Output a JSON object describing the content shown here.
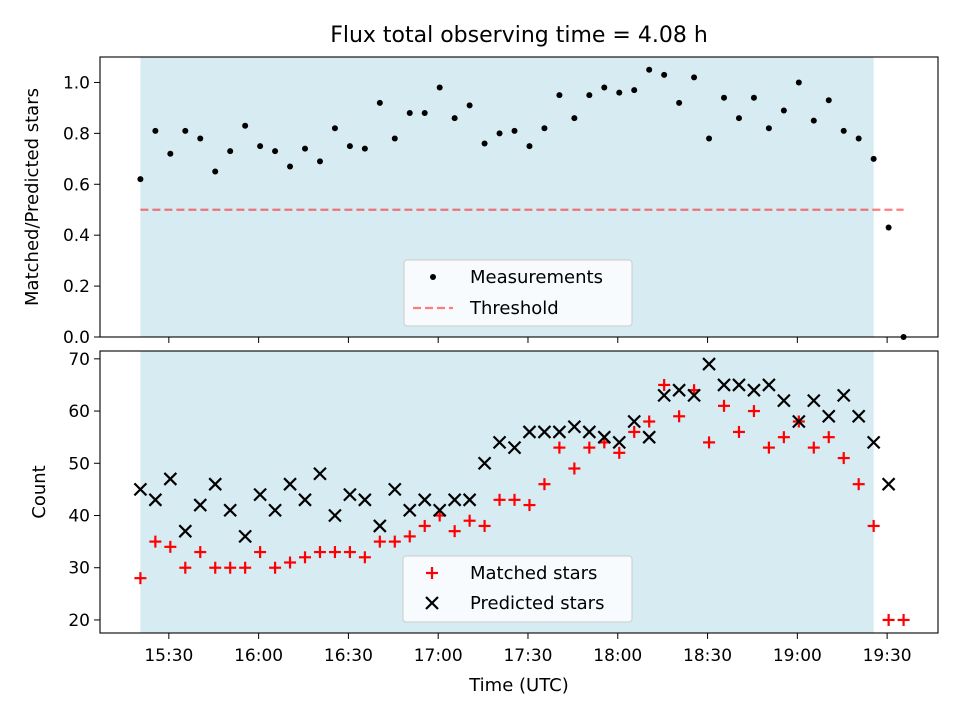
{
  "chart_data": [
    {
      "type": "scatter",
      "title": "Flux total observing time = 4.08 h",
      "xlabel": "",
      "ylabel": "Matched/Predicted stars",
      "ylim": [
        0,
        1.1
      ],
      "yticks": [
        "0.0",
        "0.2",
        "0.4",
        "0.6",
        "0.8",
        "1.0"
      ],
      "ytick_values": [
        0,
        0.2,
        0.4,
        0.6,
        0.8,
        1.0
      ],
      "observing_window_minutes": [
        920.5,
        1165.5
      ],
      "observing_window_color": "#add8e6",
      "legend": [
        "Measurements",
        "Threshold"
      ],
      "legend_location": "lower center",
      "threshold": {
        "value": 0.5,
        "x_range_minutes": [
          920.5,
          1175.5
        ],
        "color": "#ff0000"
      },
      "series": [
        {
          "name": "Measurements",
          "marker": "dot",
          "color": "#000000",
          "x_minutes": [
            920.5,
            925.5,
            930.5,
            935.5,
            940.5,
            945.5,
            950.5,
            955.5,
            960.5,
            965.5,
            970.5,
            975.5,
            980.5,
            985.5,
            990.5,
            995.5,
            1000.5,
            1005.5,
            1010.5,
            1015.5,
            1020.5,
            1025.5,
            1030.5,
            1035.5,
            1040.5,
            1045.5,
            1050.5,
            1055.5,
            1060.5,
            1065.5,
            1070.5,
            1075.5,
            1080.5,
            1085.5,
            1090.5,
            1095.5,
            1100.5,
            1105.5,
            1110.5,
            1115.5,
            1120.5,
            1125.5,
            1130.5,
            1135.5,
            1140.5,
            1145.5,
            1150.5,
            1155.5,
            1160.5,
            1165.5,
            1170.5,
            1175.5
          ],
          "y": [
            0.62,
            0.81,
            0.72,
            0.81,
            0.78,
            0.65,
            0.73,
            0.83,
            0.75,
            0.73,
            0.67,
            0.74,
            0.69,
            0.82,
            0.75,
            0.74,
            0.92,
            0.78,
            0.88,
            0.88,
            0.98,
            0.86,
            0.91,
            0.76,
            0.8,
            0.81,
            0.75,
            0.82,
            0.95,
            0.86,
            0.95,
            0.98,
            0.96,
            0.97,
            1.05,
            1.03,
            0.92,
            1.02,
            0.78,
            0.94,
            0.86,
            0.94,
            0.82,
            0.89,
            1.0,
            0.85,
            0.93,
            0.81,
            0.78,
            0.7,
            0.43,
            0.0
          ]
        }
      ]
    },
    {
      "type": "scatter",
      "title": "",
      "xlabel": "Time (UTC)",
      "ylabel": "Count",
      "ylim": [
        17.5,
        71.5
      ],
      "yticks": [
        "20",
        "30",
        "40",
        "50",
        "60",
        "70"
      ],
      "ytick_values": [
        20,
        30,
        40,
        50,
        60,
        70
      ],
      "xlim_minutes": [
        907,
        1187
      ],
      "xticks": [
        "15:30",
        "16:00",
        "16:30",
        "17:00",
        "17:30",
        "18:00",
        "18:30",
        "19:00",
        "19:30"
      ],
      "xtick_minutes": [
        930,
        960,
        990,
        1020,
        1050,
        1080,
        1110,
        1140,
        1170
      ],
      "observing_window_minutes": [
        920.5,
        1165.5
      ],
      "observing_window_color": "#add8e6",
      "legend": [
        "Matched stars",
        "Predicted stars"
      ],
      "legend_location": "lower center",
      "series": [
        {
          "name": "Matched stars",
          "marker": "plus",
          "color": "#ff0000",
          "x_minutes": [
            920.5,
            925.5,
            930.5,
            935.5,
            940.5,
            945.5,
            950.5,
            955.5,
            960.5,
            965.5,
            970.5,
            975.5,
            980.5,
            985.5,
            990.5,
            995.5,
            1000.5,
            1005.5,
            1010.5,
            1015.5,
            1020.5,
            1025.5,
            1030.5,
            1035.5,
            1040.5,
            1045.5,
            1050.5,
            1055.5,
            1060.5,
            1065.5,
            1070.5,
            1075.5,
            1080.5,
            1085.5,
            1090.5,
            1095.5,
            1100.5,
            1105.5,
            1110.5,
            1115.5,
            1120.5,
            1125.5,
            1130.5,
            1135.5,
            1140.5,
            1145.5,
            1150.5,
            1155.5,
            1160.5,
            1165.5,
            1170.5,
            1175.5
          ],
          "y": [
            28,
            35,
            34,
            30,
            33,
            30,
            30,
            30,
            33,
            30,
            31,
            32,
            33,
            33,
            33,
            32,
            35,
            35,
            36,
            38,
            40,
            37,
            39,
            38,
            43,
            43,
            42,
            46,
            53,
            49,
            53,
            54,
            52,
            56,
            58,
            65,
            59,
            64,
            54,
            61,
            56,
            60,
            53,
            55,
            58,
            53,
            55,
            51,
            46,
            38,
            20,
            20
          ]
        },
        {
          "name": "Predicted stars",
          "marker": "x",
          "color": "#000000",
          "x_minutes": [
            920.5,
            925.5,
            930.5,
            935.5,
            940.5,
            945.5,
            950.5,
            955.5,
            960.5,
            965.5,
            970.5,
            975.5,
            980.5,
            985.5,
            990.5,
            995.5,
            1000.5,
            1005.5,
            1010.5,
            1015.5,
            1020.5,
            1025.5,
            1030.5,
            1035.5,
            1040.5,
            1045.5,
            1050.5,
            1055.5,
            1060.5,
            1065.5,
            1070.5,
            1075.5,
            1080.5,
            1085.5,
            1090.5,
            1095.5,
            1100.5,
            1105.5,
            1110.5,
            1115.5,
            1120.5,
            1125.5,
            1130.5,
            1135.5,
            1140.5,
            1145.5,
            1150.5,
            1155.5,
            1160.5,
            1165.5,
            1170.5
          ],
          "y": [
            45,
            43,
            47,
            37,
            42,
            46,
            41,
            36,
            44,
            41,
            46,
            43,
            48,
            40,
            44,
            43,
            38,
            45,
            41,
            43,
            41,
            43,
            43,
            50,
            54,
            53,
            56,
            56,
            56,
            57,
            56,
            55,
            54,
            58,
            55,
            63,
            64,
            63,
            69,
            65,
            65,
            64,
            65,
            62,
            58,
            62,
            59,
            63,
            59,
            54,
            46
          ]
        }
      ]
    }
  ]
}
